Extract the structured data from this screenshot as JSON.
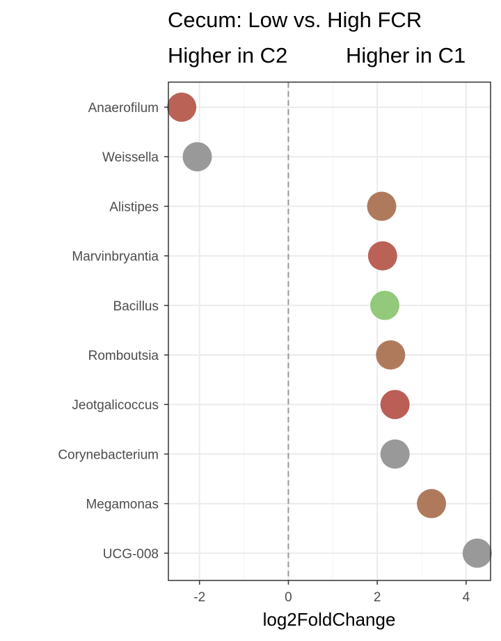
{
  "chart_data": {
    "type": "scatter",
    "title": "Cecum: Low vs. High FCR",
    "subtitle_left": "Higher in C2",
    "subtitle_right": "Higher in C1",
    "xlabel": "log2FoldChange",
    "ylabel": "",
    "xlim": [
      -2.7,
      4.55
    ],
    "x_ticks": [
      -2,
      0,
      2,
      4
    ],
    "x_tick_labels": [
      "-2",
      "0",
      "2",
      "4"
    ],
    "reference_line_x": 0,
    "grid": true,
    "legend": "none",
    "categories": [
      "Anaerofilum",
      "Weissella",
      "Alistipes",
      "Marvinbryantia",
      "Bacillus",
      "Romboutsia",
      "Jeotgalicoccus",
      "Corynebacterium",
      "Megamonas",
      "UCG-008"
    ],
    "points": [
      {
        "label": "Anaerofilum",
        "x": -2.4,
        "color": "#bb6257"
      },
      {
        "label": "Weissella",
        "x": -2.05,
        "color": "#999999"
      },
      {
        "label": "Alistipes",
        "x": 2.1,
        "color": "#af7a5c"
      },
      {
        "label": "Marvinbryantia",
        "x": 2.12,
        "color": "#bb6257"
      },
      {
        "label": "Bacillus",
        "x": 2.17,
        "color": "#93c97a"
      },
      {
        "label": "Romboutsia",
        "x": 2.3,
        "color": "#af7a5c"
      },
      {
        "label": "Jeotgalicoccus",
        "x": 2.4,
        "color": "#bb5e56"
      },
      {
        "label": "Corynebacterium",
        "x": 2.4,
        "color": "#999999"
      },
      {
        "label": "Megamonas",
        "x": 3.22,
        "color": "#af7a5c"
      },
      {
        "label": "UCG-008",
        "x": 4.25,
        "color": "#999999"
      }
    ]
  },
  "colors": {
    "grid_major": "#ebebeb",
    "grid_minor": "#f5f5f5",
    "panel_border": "#333333",
    "reference_line": "#999999",
    "axis_text": "#4d4d4d"
  }
}
